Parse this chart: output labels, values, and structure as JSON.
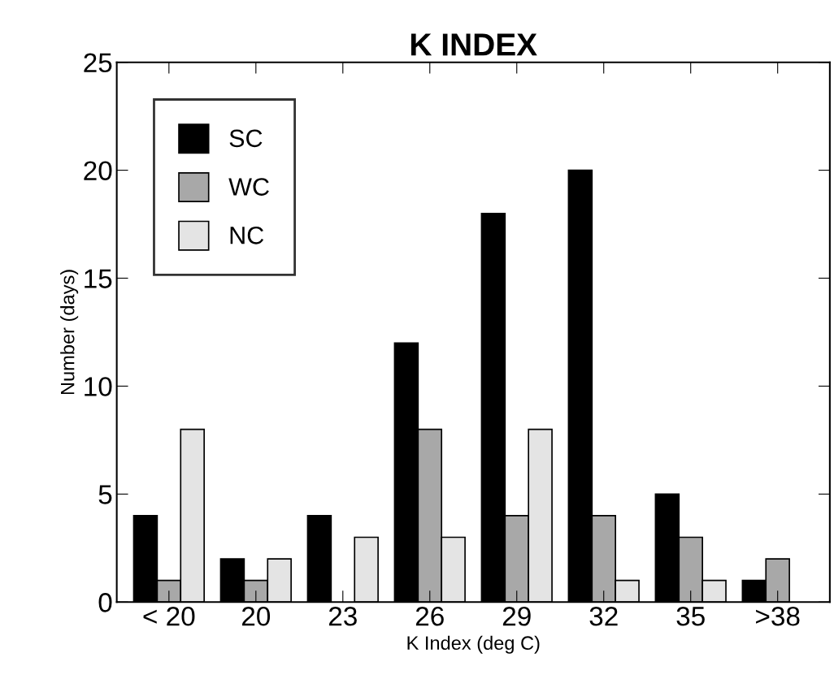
{
  "chart_data": {
    "type": "bar",
    "title": "K INDEX",
    "xlabel": "K Index (deg C)",
    "ylabel": "Number (days)",
    "categories": [
      "< 20",
      "20",
      "23",
      "26",
      "29",
      "32",
      "35",
      ">38"
    ],
    "series": [
      {
        "name": "SC",
        "color": "#000000",
        "values": [
          4,
          2,
          4,
          12,
          18,
          20,
          5,
          1
        ]
      },
      {
        "name": "WC",
        "color": "#a8a8a8",
        "values": [
          1,
          1,
          null,
          8,
          4,
          4,
          3,
          2
        ]
      },
      {
        "name": "NC",
        "color": "#e4e4e4",
        "values": [
          8,
          2,
          3,
          3,
          8,
          1,
          1,
          null
        ]
      }
    ],
    "ylim": [
      0,
      25
    ],
    "yticks": [
      0,
      5,
      10,
      15,
      20,
      25
    ],
    "grid": false,
    "legend": "top left"
  }
}
